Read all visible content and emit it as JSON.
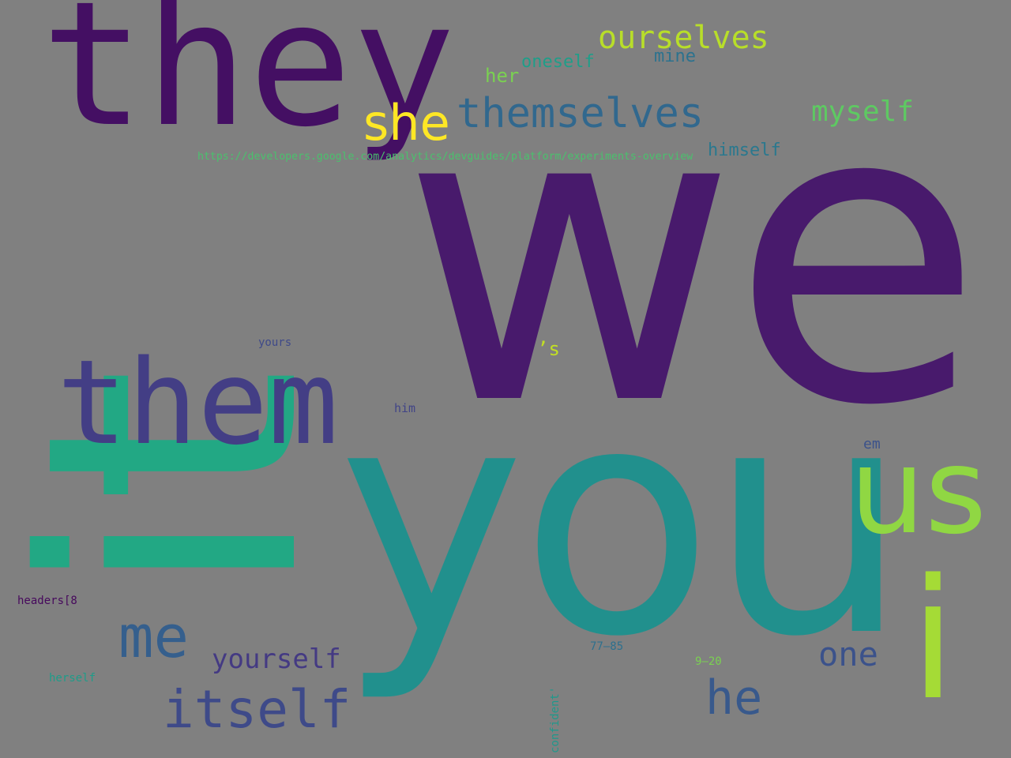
{
  "words": [
    {
      "id": "we",
      "text": "we",
      "color": "#481a6c"
    },
    {
      "id": "it",
      "text": "it",
      "color": "#22a884"
    },
    {
      "id": "you",
      "text": "you",
      "color": "#21908d"
    },
    {
      "id": "they",
      "text": "they",
      "color": "#440f63"
    },
    {
      "id": "them",
      "text": "them",
      "color": "#433e85"
    },
    {
      "id": "us",
      "text": "us",
      "color": "#90d743"
    },
    {
      "id": "i",
      "text": "i",
      "color": "#a5db36"
    },
    {
      "id": "she",
      "text": "she",
      "color": "#fde725"
    },
    {
      "id": "themselves",
      "text": "themselves",
      "color": "#31688e"
    },
    {
      "id": "ourselves",
      "text": "ourselves",
      "color": "#b8de29"
    },
    {
      "id": "me",
      "text": "me",
      "color": "#355f8d"
    },
    {
      "id": "itself",
      "text": "itself",
      "color": "#3e4a89"
    },
    {
      "id": "he",
      "text": "he",
      "color": "#38598c"
    },
    {
      "id": "one",
      "text": "one",
      "color": "#3b528b"
    },
    {
      "id": "yourself",
      "text": "yourself",
      "color": "#443a83"
    },
    {
      "id": "myself",
      "text": "myself",
      "color": "#5ec962"
    },
    {
      "id": "himself",
      "text": "himself",
      "color": "#2a788e"
    },
    {
      "id": "mine",
      "text": "mine",
      "color": "#2c728e"
    },
    {
      "id": "oneself",
      "text": "oneself",
      "color": "#1f9e89"
    },
    {
      "id": "her",
      "text": "her",
      "color": "#7ad151"
    },
    {
      "id": "url",
      "text": "https://developers.google.com/analytics/devguides/platform/experiments-overview",
      "color": "#4ac16d"
    },
    {
      "id": "yours",
      "text": "yours",
      "color": "#3e4989"
    },
    {
      "id": "apos-s",
      "text": "’s",
      "color": "#c2df23"
    },
    {
      "id": "him",
      "text": "him",
      "color": "#414487"
    },
    {
      "id": "em",
      "text": "em",
      "color": "#3b528b"
    },
    {
      "id": "headers",
      "text": "headers[8",
      "color": "#46085c"
    },
    {
      "id": "herself",
      "text": "herself",
      "color": "#1e9c89"
    },
    {
      "id": "range-77-85",
      "text": "77–85",
      "color": "#2d708e"
    },
    {
      "id": "range-9-20",
      "text": "9–20",
      "color": "#7ad151"
    },
    {
      "id": "confident",
      "text": "confident'",
      "color": "#1f988b"
    }
  ]
}
